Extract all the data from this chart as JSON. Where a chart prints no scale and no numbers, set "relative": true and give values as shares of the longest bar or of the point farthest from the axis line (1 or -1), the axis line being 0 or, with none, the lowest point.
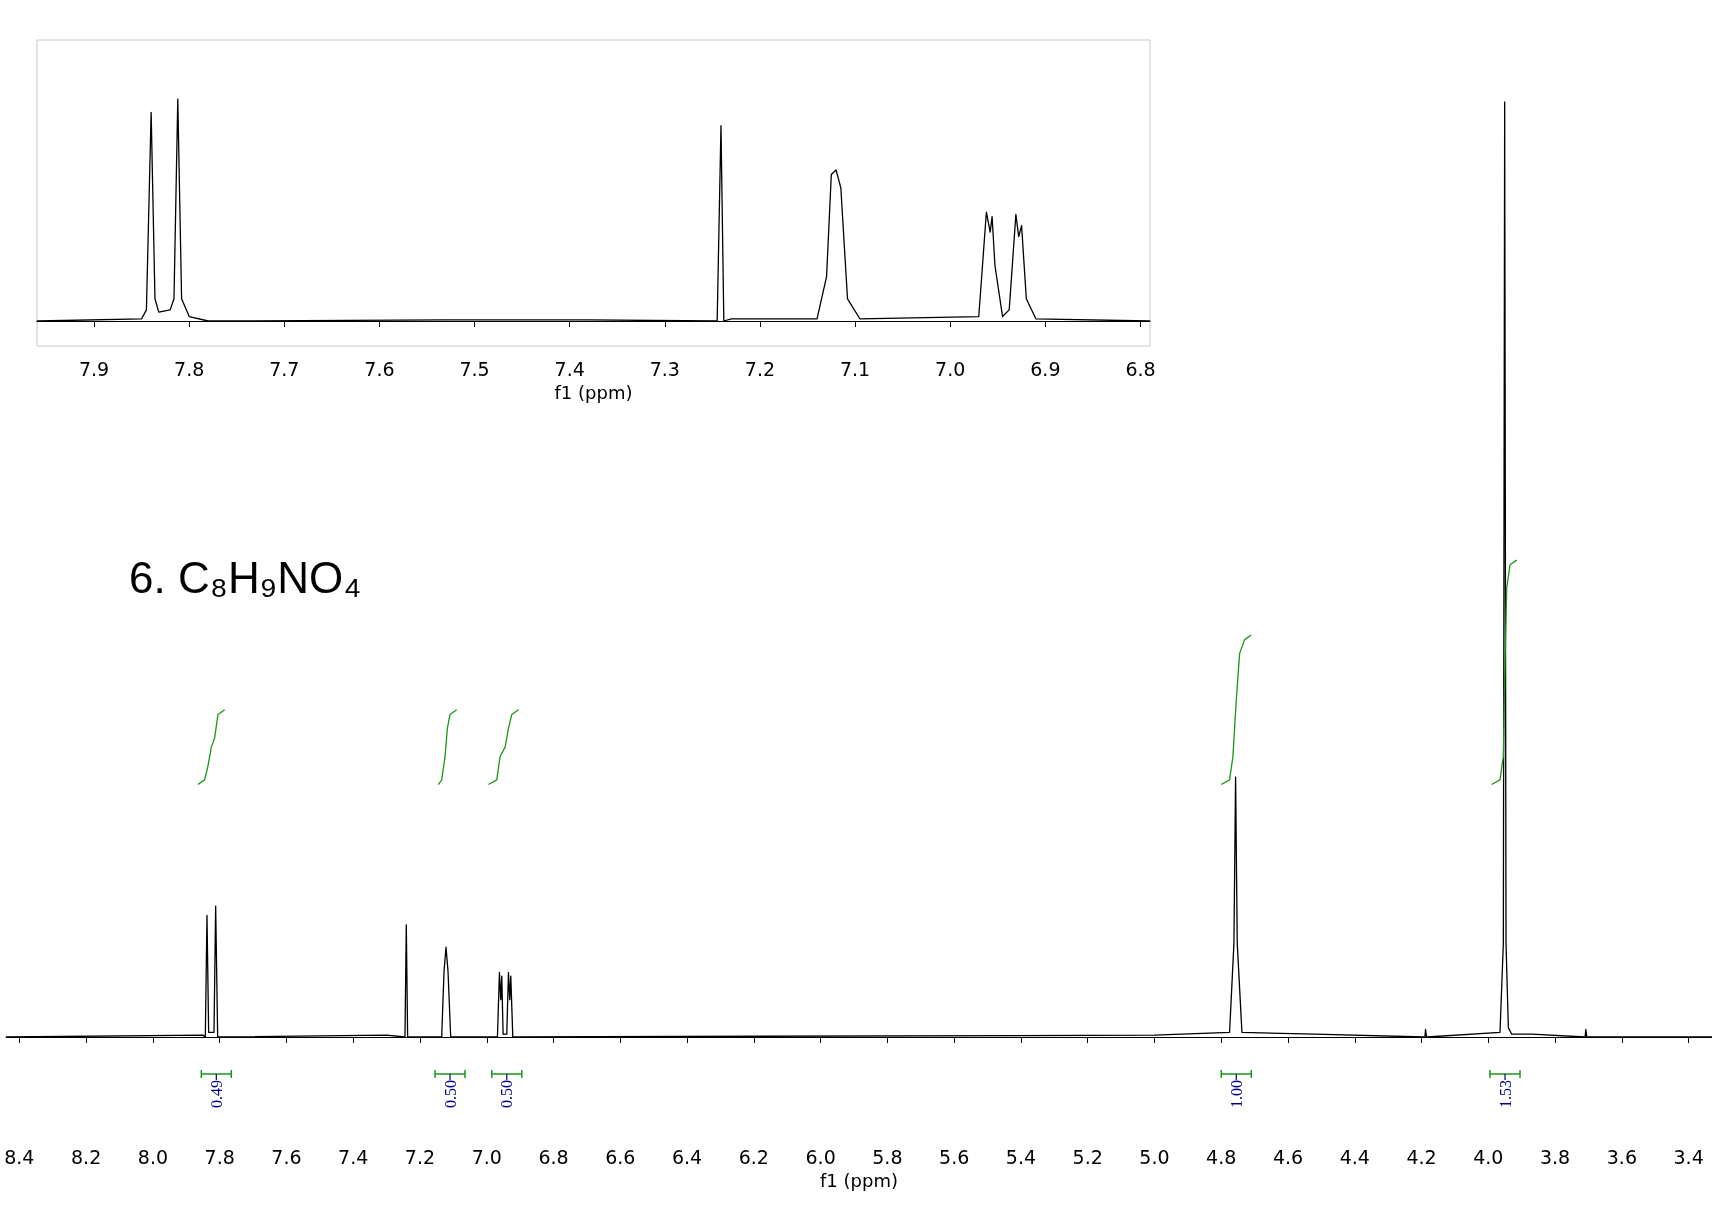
{
  "chart_data": [
    {
      "type": "line",
      "relative": true,
      "xlabel": "f1 (ppm)",
      "xlim": [
        7.96,
        6.79
      ],
      "xticks": [
        7.9,
        7.8,
        7.7,
        7.6,
        7.5,
        7.4,
        7.3,
        7.2,
        7.1,
        {
          "value": 7,
          "label": "7.0"
        },
        6.9,
        6.8
      ],
      "series": [
        {
          "color": "#000000",
          "x": [
            7.96,
            7.85,
            7.845,
            7.84,
            7.836,
            7.832,
            7.82,
            7.816,
            7.812,
            7.808,
            7.8,
            7.78,
            7.53,
            7.38,
            7.245,
            7.241,
            7.238,
            7.23,
            7.14,
            7.13,
            7.125,
            7.12,
            7.115,
            7.108,
            7.095,
            6.97,
            6.962,
            6.958,
            6.956,
            6.953,
            6.945,
            6.938,
            6.931,
            6.928,
            6.925,
            6.92,
            6.91,
            6.79
          ],
          "values": [
            0,
            0.01,
            0.05,
            0.94,
            0.1,
            0.04,
            0.05,
            0.1,
            1.0,
            0.1,
            0.02,
            0,
            0.005,
            0.005,
            0,
            0.88,
            0,
            0.01,
            0.01,
            0.2,
            0.66,
            0.68,
            0.6,
            0.1,
            0.01,
            0.02,
            0.49,
            0.4,
            0.47,
            0.25,
            0.02,
            0.05,
            0.48,
            0.38,
            0.43,
            0.1,
            0.01,
            0
          ]
        }
      ]
    },
    {
      "type": "line",
      "relative": true,
      "xlabel": "f1 (ppm)",
      "xlim": [
        8.44,
        3.33
      ],
      "xticks": [
        8.4,
        8.2,
        {
          "value": 8,
          "label": "8.0"
        },
        7.8,
        7.6,
        7.4,
        7.2,
        {
          "value": 7,
          "label": "7.0"
        },
        6.8,
        6.6,
        6.4,
        6.2,
        {
          "value": 6,
          "label": "6.0"
        },
        5.8,
        5.6,
        5.4,
        5.2,
        {
          "value": 5,
          "label": "5.0"
        },
        4.8,
        4.6,
        4.4,
        4.2,
        {
          "value": 4,
          "label": "4.0"
        },
        3.8,
        3.6,
        3.4
      ],
      "annotations": [
        "6. C₈H₉NO₄",
        {
          "text": "0.49",
          "x": 7.81
        },
        {
          "text": "0.50",
          "x": 7.11
        },
        {
          "text": "0.50",
          "x": 6.94
        },
        {
          "text": "1.00",
          "x": 4.755
        },
        {
          "text": "1.53",
          "x": 3.95
        }
      ],
      "series": [
        {
          "color": "#000000",
          "x": [
            8.44,
            7.85,
            7.843,
            7.838,
            7.833,
            7.817,
            7.812,
            7.806,
            7.3,
            7.245,
            7.241,
            7.237,
            7.135,
            7.128,
            7.122,
            7.116,
            7.108,
            6.968,
            6.962,
            6.958,
            6.955,
            6.951,
            6.94,
            6.935,
            6.931,
            6.928,
            6.922,
            5.0,
            4.775,
            4.762,
            4.757,
            4.752,
            4.738,
            4.52,
            4.19,
            4.188,
            4.185,
            3.965,
            3.955,
            3.951,
            3.947,
            3.94,
            3.93,
            3.87,
            3.71,
            3.708,
            3.705,
            3.33
          ],
          "values": [
            0,
            0.002,
            0,
            0.13,
            0.005,
            0.005,
            0.14,
            0,
            0.002,
            0,
            0.12,
            0,
            0,
            0.07,
            0.096,
            0.07,
            0,
            0,
            0.069,
            0.04,
            0.065,
            0.003,
            0.003,
            0.069,
            0.04,
            0.065,
            0,
            0.002,
            0.005,
            0.1,
            0.278,
            0.1,
            0.005,
            0.003,
            0,
            0.008,
            0,
            0.005,
            0.1,
            1.0,
            0.1,
            0.01,
            0.003,
            0.003,
            0,
            0.008,
            0,
            0
          ]
        },
        {
          "color": "#1a961a",
          "x": [
            7.865,
            7.845,
            7.835,
            7.825,
            7.815,
            7.805,
            7.785
          ],
          "values": [
            0.27,
            0.275,
            0.29,
            0.31,
            0.32,
            0.345,
            0.35
          ]
        },
        {
          "color": "#1a961a",
          "x": [
            7.145,
            7.135,
            7.125,
            7.118,
            7.11,
            7.09
          ],
          "values": [
            0.27,
            0.275,
            0.3,
            0.33,
            0.345,
            0.35
          ]
        },
        {
          "color": "#1a961a",
          "x": [
            6.995,
            6.97,
            6.96,
            6.945,
            6.935,
            6.925,
            6.905
          ],
          "values": [
            0.27,
            0.275,
            0.3,
            0.31,
            0.33,
            0.345,
            0.35
          ]
        },
        {
          "color": "#1a961a",
          "x": [
            4.8,
            4.775,
            4.765,
            4.755,
            4.745,
            4.73,
            4.71
          ],
          "values": [
            0.27,
            0.275,
            0.3,
            0.36,
            0.41,
            0.425,
            0.43
          ]
        },
        {
          "color": "#1a961a",
          "x": [
            3.99,
            3.965,
            3.955,
            3.95,
            3.945,
            3.935,
            3.915
          ],
          "values": [
            0.27,
            0.275,
            0.3,
            0.4,
            0.48,
            0.505,
            0.51
          ]
        }
      ]
    }
  ]
}
